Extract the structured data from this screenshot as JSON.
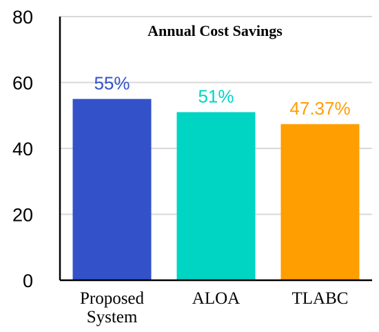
{
  "chart_data": {
    "type": "bar",
    "title": "Annual Cost Savings",
    "xlabel": "",
    "ylabel": "",
    "ylim": [
      0,
      80
    ],
    "yticks": [
      "0",
      "20",
      "40",
      "60",
      "80"
    ],
    "grid": true,
    "categories": [
      [
        "Proposed",
        "System"
      ],
      [
        "ALOA"
      ],
      [
        "TLABC"
      ]
    ],
    "values": [
      55,
      51,
      47.37
    ],
    "data_labels": [
      "55%",
      "51%",
      "47.37%"
    ],
    "colors": [
      "#3352C9",
      "#00D4C3",
      "#FF9E00"
    ]
  }
}
